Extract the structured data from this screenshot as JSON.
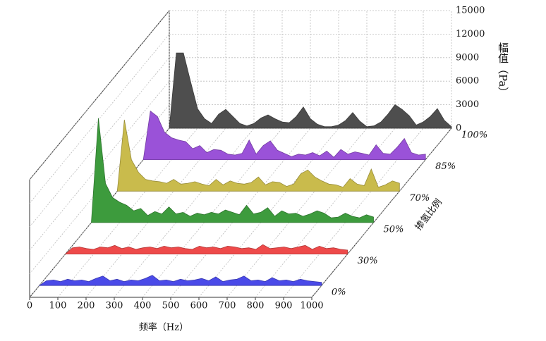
{
  "chart_data": {
    "type": "waterfall3d",
    "x_label": "频率（Hz）",
    "y_label": "幅值（Pa）",
    "z_label": "掺氢比例",
    "x": [
      0,
      25,
      50,
      75,
      100,
      125,
      150,
      175,
      200,
      225,
      250,
      275,
      300,
      325,
      350,
      375,
      400,
      425,
      450,
      475,
      500,
      525,
      550,
      575,
      600,
      625,
      650,
      675,
      700,
      725,
      750,
      775,
      800,
      825,
      850,
      875,
      900,
      925,
      950,
      975,
      1000
    ],
    "xlim": [
      0,
      1000
    ],
    "xticks": [
      0,
      100,
      200,
      300,
      400,
      500,
      600,
      700,
      800,
      900,
      1000
    ],
    "ylim": [
      0,
      15000
    ],
    "yticks": [
      0,
      3000,
      6000,
      9000,
      12000,
      15000
    ],
    "grid": true,
    "series": [
      {
        "name": "0%",
        "color": "#4a4ae8",
        "values": [
          0,
          600,
          700,
          500,
          800,
          600,
          700,
          500,
          900,
          1200,
          600,
          800,
          500,
          700,
          600,
          900,
          1300,
          600,
          700,
          500,
          800,
          600,
          700,
          900,
          600,
          1100,
          500,
          700,
          800,
          1200,
          600,
          700,
          500,
          1000,
          600,
          700,
          500,
          800,
          600,
          500,
          400
        ]
      },
      {
        "name": "30%",
        "color": "#ee4a4a",
        "values": [
          0,
          800,
          900,
          700,
          600,
          900,
          800,
          1100,
          700,
          900,
          600,
          800,
          900,
          700,
          1000,
          800,
          900,
          700,
          600,
          1000,
          800,
          900,
          700,
          1000,
          900,
          700,
          800,
          600,
          1200,
          700,
          800,
          900,
          700,
          900,
          1100,
          600,
          1000,
          700,
          800,
          600,
          500
        ]
      },
      {
        "name": "50%",
        "color": "#3d9b3d",
        "values": [
          0,
          13300,
          5000,
          3200,
          2600,
          2200,
          1500,
          1800,
          900,
          1400,
          1100,
          2000,
          1100,
          1300,
          800,
          1200,
          1000,
          1300,
          1100,
          1600,
          1300,
          1000,
          2200,
          1100,
          1300,
          1900,
          800,
          1500,
          1100,
          1200,
          800,
          1100,
          1500,
          1200,
          600,
          700,
          1200,
          800,
          600,
          1000,
          700
        ]
      },
      {
        "name": "70%",
        "color": "#c9bb4c",
        "values": [
          0,
          9100,
          4000,
          2400,
          1500,
          1300,
          1200,
          1000,
          1500,
          900,
          1000,
          1200,
          900,
          700,
          1500,
          800,
          1300,
          1000,
          900,
          1100,
          1800,
          800,
          1200,
          1100,
          600,
          900,
          2200,
          2700,
          1800,
          1300,
          900,
          800,
          500,
          1600,
          900,
          700,
          2800,
          500,
          800,
          1300,
          1000
        ]
      },
      {
        "name": "85%",
        "color": "#9a52d8",
        "values": [
          0,
          6200,
          5500,
          3500,
          2800,
          2500,
          2300,
          1400,
          1800,
          900,
          1300,
          1200,
          700,
          600,
          800,
          2500,
          700,
          1800,
          2400,
          1200,
          800,
          400,
          700,
          600,
          900,
          500,
          1100,
          300,
          1300,
          700,
          1000,
          800,
          600,
          1900,
          800,
          700,
          1600,
          2700,
          900,
          600,
          700
        ]
      },
      {
        "name": "100%",
        "color": "#4e4e4e",
        "values": [
          0,
          9600,
          9600,
          6000,
          2500,
          1200,
          600,
          1800,
          2400,
          1500,
          600,
          300,
          600,
          1300,
          1700,
          1200,
          800,
          700,
          1500,
          2700,
          1200,
          500,
          200,
          200,
          400,
          1000,
          2000,
          900,
          200,
          300,
          800,
          1800,
          3000,
          2400,
          1600,
          400,
          800,
          1500,
          2500,
          1000,
          200
        ]
      }
    ]
  }
}
